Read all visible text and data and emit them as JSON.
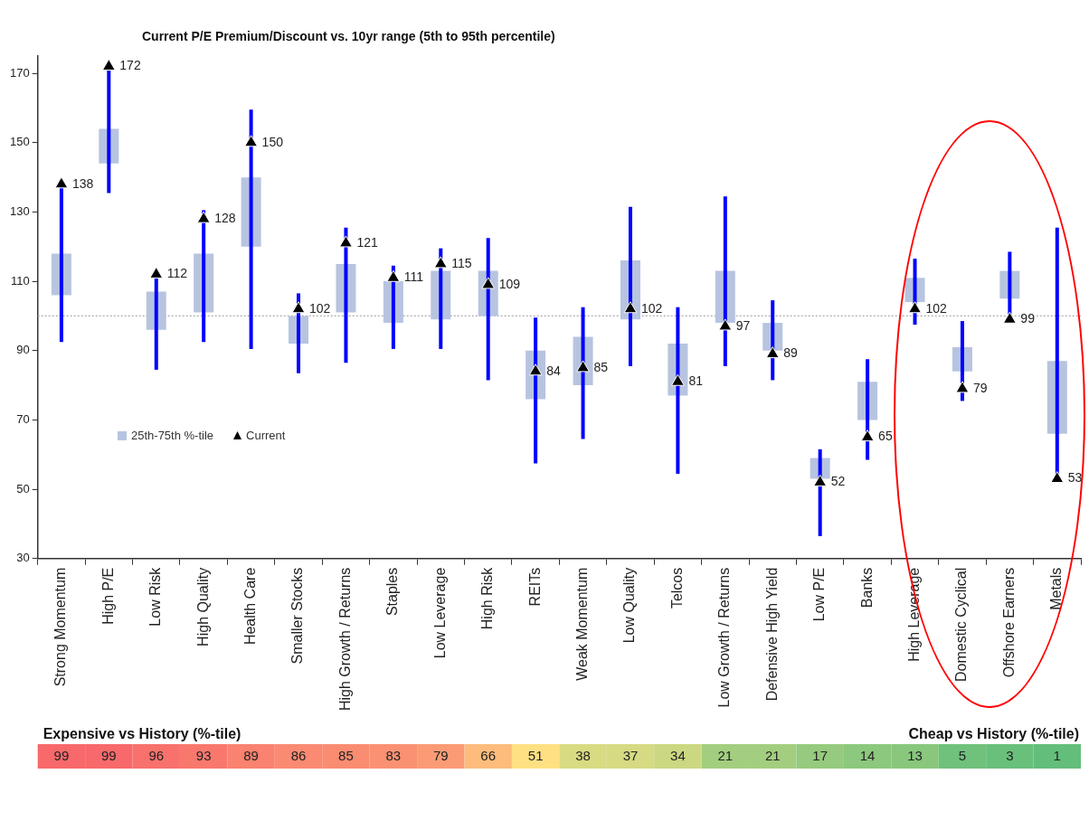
{
  "chart_data": [
    {
      "type": "bar",
      "title": "Current P/E Premium/Discount vs. 10yr range (5th to 95th percentile)",
      "categories": [
        "Strong Momentum",
        "High P/E",
        "Low Risk",
        "High Quality",
        "Health Care",
        "Smaller Stocks",
        "High Growth / Returns",
        "Staples",
        "Low Leverage",
        "High Risk",
        "REITs",
        "Weak Momentum",
        "Low Quality",
        "Telcos",
        "Low Growth / Returns",
        "Defensive High Yield",
        "Low P/E",
        "Banks",
        "High Leverage",
        "Domestic Cyclical",
        "Offshore Earners",
        "Metals"
      ],
      "ylim": [
        30,
        175
      ],
      "yticks": [
        30,
        50,
        70,
        90,
        110,
        130,
        150,
        170
      ],
      "grid": false,
      "legend": "bottom left",
      "ref_lines": [
        {
          "axis": "y",
          "value": 100,
          "color": "#aaaaaa",
          "line_style": "dotted"
        }
      ],
      "series": [
        {
          "name": "25th-75th %-tile",
          "type": "bar",
          "color": "#b7c4e0",
          "base": [
            106,
            144,
            96,
            101,
            120,
            92,
            101,
            98,
            99,
            100,
            76,
            80,
            99,
            77,
            98,
            90,
            53,
            70,
            104,
            84,
            105,
            66
          ],
          "values": [
            12,
            10,
            11,
            17,
            20,
            8,
            14,
            12,
            14,
            13,
            14,
            14,
            17,
            15,
            15,
            8,
            6,
            11,
            7,
            7,
            8,
            21
          ]
        },
        {
          "name": "Current",
          "type": "scatter",
          "color": "#000000",
          "marker": "triangle",
          "values": [
            138,
            172,
            112,
            128,
            150,
            102,
            121,
            111,
            115,
            109,
            84,
            85,
            102,
            81,
            97,
            89,
            52,
            65,
            102,
            79,
            99,
            53
          ],
          "value_labels": [
            "138",
            "172",
            "112",
            "128",
            "150",
            "102",
            "121",
            "111",
            "115",
            "109",
            "84",
            "85",
            "102",
            "81",
            "97",
            "89",
            "52",
            "65",
            "102",
            "79",
            "99",
            "53"
          ],
          "errors": [
            [
              93,
              138
            ],
            [
              136,
              172
            ],
            [
              85,
              112
            ],
            [
              93,
              130
            ],
            [
              91,
              159
            ],
            [
              84,
              106
            ],
            [
              87,
              125
            ],
            [
              91,
              114
            ],
            [
              91,
              119
            ],
            [
              82,
              122
            ],
            [
              58,
              99
            ],
            [
              65,
              102
            ],
            [
              86,
              131
            ],
            [
              55,
              102
            ],
            [
              86,
              134
            ],
            [
              82,
              104
            ],
            [
              37,
              61
            ],
            [
              59,
              87
            ],
            [
              98,
              116
            ],
            [
              76,
              98
            ],
            [
              99,
              118
            ],
            [
              53,
              125
            ]
          ]
        }
      ]
    },
    {
      "type": "other",
      "data_labels": true,
      "values": [
        99,
        99,
        96,
        93,
        89,
        86,
        85,
        83,
        79,
        66,
        51,
        38,
        37,
        34,
        21,
        21,
        17,
        14,
        13,
        5,
        3,
        1
      ],
      "annotations": [
        "Expensive vs History (%-tile)",
        "Cheap vs History (%-tile)"
      ]
    }
  ]
}
